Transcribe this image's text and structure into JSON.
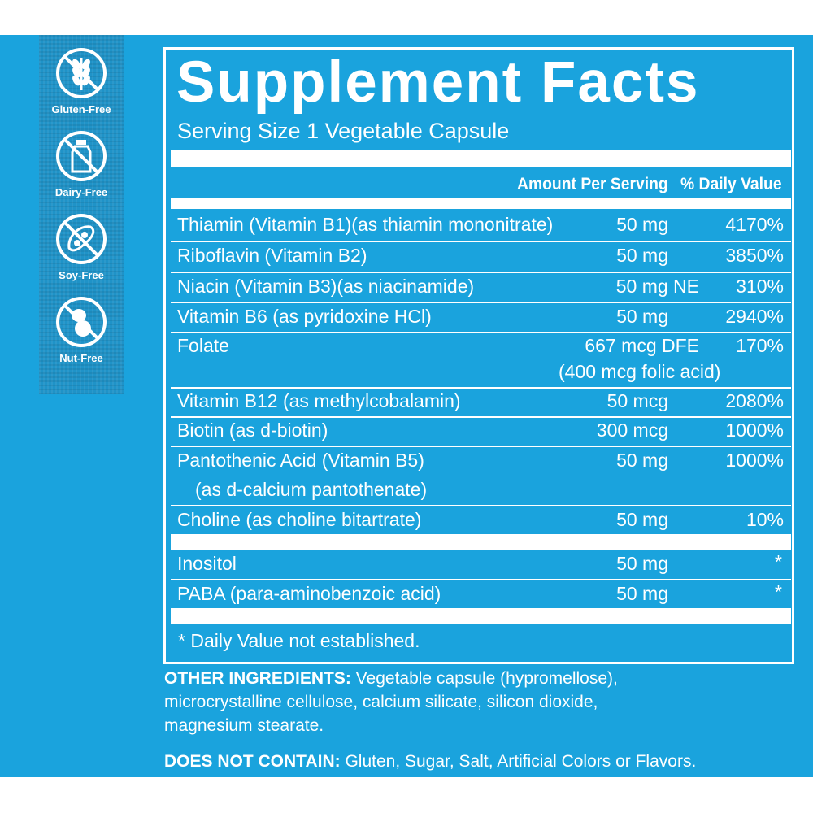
{
  "badges": [
    {
      "label": "Gluten-Free",
      "icon": "wheat-icon"
    },
    {
      "label": "Dairy-Free",
      "icon": "milk-bottle-icon"
    },
    {
      "label": "Soy-Free",
      "icon": "soybean-icon"
    },
    {
      "label": "Nut-Free",
      "icon": "peanut-icon"
    }
  ],
  "title": "Supplement Facts",
  "serving_size": "Serving Size 1 Vegetable Capsule",
  "headers": {
    "amount": "Amount Per Serving",
    "dv": "% Daily Value"
  },
  "rows": [
    {
      "name": "Thiamin (Vitamin B1)(as thiamin mononitrate)",
      "amount": "50 mg",
      "dv": "4170%"
    },
    {
      "name": "Riboflavin (Vitamin B2)",
      "amount": "50 mg",
      "dv": "3850%"
    },
    {
      "name": "Niacin (Vitamin B3)(as niacinamide)",
      "amount": "50 mg NE",
      "dv": "310%"
    },
    {
      "name": "Vitamin B6 (as pyridoxine HCl)",
      "amount": "50 mg",
      "dv": "2940%"
    },
    {
      "name": "Folate",
      "amount": "667 mcg DFE",
      "amount2": "(400 mcg folic acid)",
      "dv": "170%"
    },
    {
      "name": "Vitamin B12 (as methylcobalamin)",
      "amount": "50 mcg",
      "dv": "2080%"
    },
    {
      "name": "Biotin (as d-biotin)",
      "amount": "300 mcg",
      "dv": "1000%"
    },
    {
      "name": "Pantothenic Acid (Vitamin B5)",
      "name2": "(as d-calcium pantothenate)",
      "amount": "50 mg",
      "dv": "1000%"
    },
    {
      "name": "Choline (as choline bitartrate)",
      "amount": "50 mg",
      "dv": "10%"
    },
    {
      "name": "Inositol",
      "amount": "50 mg",
      "dv": "*"
    },
    {
      "name": "PABA (para-aminobenzoic acid)",
      "amount": "50 mg",
      "dv": "*"
    }
  ],
  "footnote": "* Daily Value not established.",
  "other_ingredients": {
    "label": "OTHER INGREDIENTS:",
    "line1": " Vegetable capsule (hypromellose),",
    "line2": "microcrystalline cellulose, calcium silicate, silicon dioxide,",
    "line3": "magnesium stearate."
  },
  "does_not_contain": {
    "label": "DOES NOT CONTAIN:",
    "text": " Gluten, Sugar, Salt, Artificial Colors or Flavors."
  },
  "colors": {
    "background": "#1aa3dd",
    "sidebar": "#1f93c8",
    "text": "#ffffff"
  }
}
